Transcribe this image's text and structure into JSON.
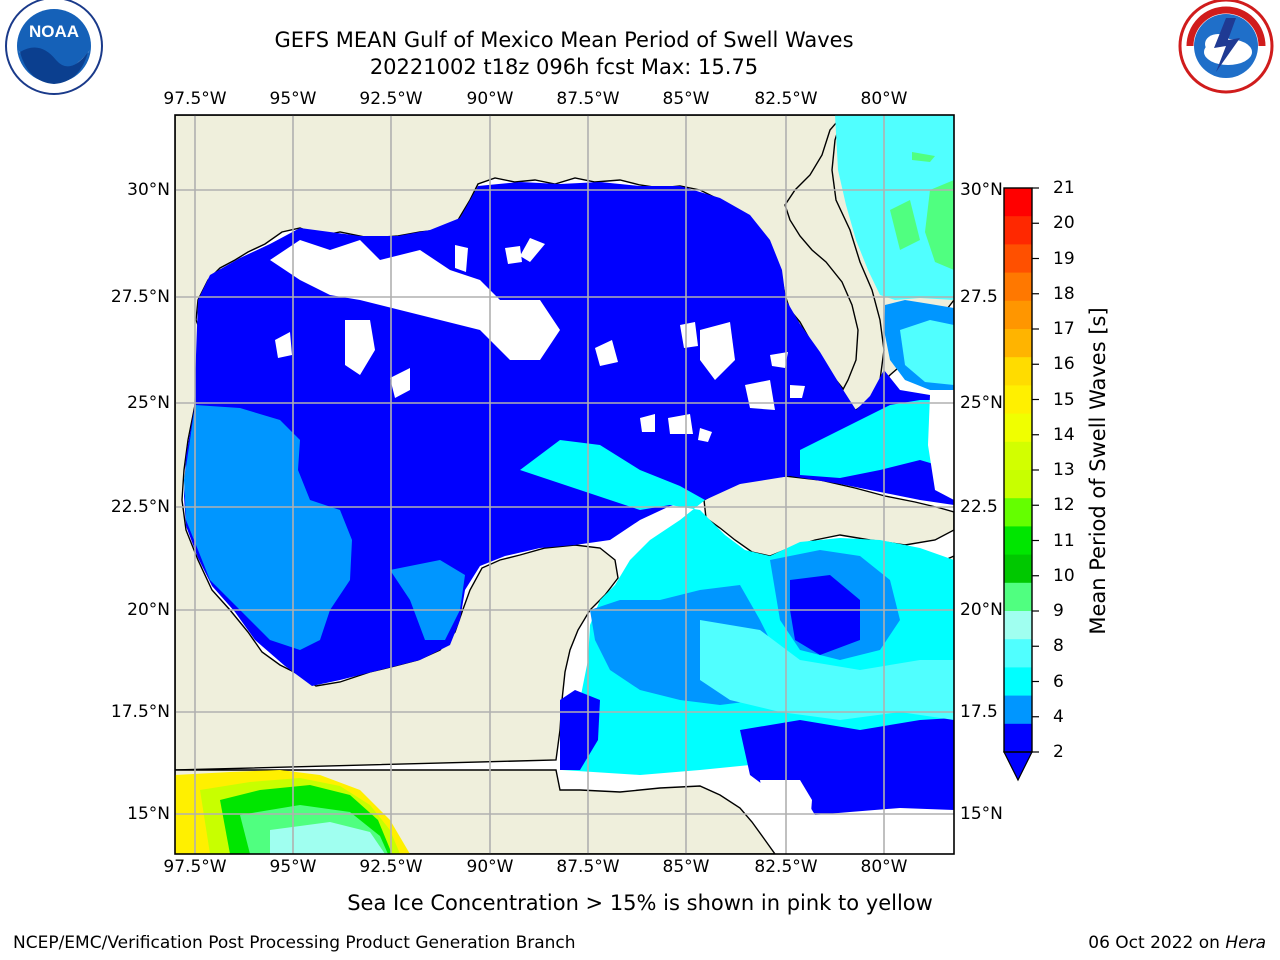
{
  "title": {
    "line1": "GEFS MEAN Gulf of Mexico Mean Period of Swell Waves",
    "line2": "20221002 t18z 096h fcst   Max: 15.75"
  },
  "map": {
    "longitude_ticks": [
      "97.5°W",
      "95°W",
      "92.5°W",
      "90°W",
      "87.5°W",
      "85°W",
      "82.5°W",
      "80°W"
    ],
    "latitude_ticks": [
      "30°N",
      "27.5°N",
      "25°N",
      "22.5°N",
      "20°N",
      "17.5°N",
      "15°N"
    ],
    "latitude_ticks_right": [
      "30°N",
      "27.5",
      "25°N",
      "22.5",
      "20°N",
      "17.5",
      "15°N"
    ],
    "extent": {
      "lon_min": -98,
      "lon_max": -78.2,
      "lat_min": 14,
      "lat_max": 31.8
    },
    "land_color": "#efefdc",
    "ocean_color": "#ffffff"
  },
  "colorbar": {
    "label": "Mean Period of Swell Waves [s]",
    "ticks": [
      "21",
      "20",
      "19",
      "18",
      "17",
      "16",
      "15",
      "14",
      "13",
      "12",
      "11",
      "10",
      "9",
      "8",
      "6",
      "4",
      "2"
    ],
    "colors": [
      "#ff0000",
      "#ff2800",
      "#ff5000",
      "#ff7800",
      "#ff9600",
      "#ffb400",
      "#ffdc00",
      "#fff000",
      "#f0ff00",
      "#d2ff00",
      "#c8ff00",
      "#64ff00",
      "#00e600",
      "#00c800",
      "#50ff80",
      "#a0fff0",
      "#50ffff",
      "#00ffff",
      "#0096ff",
      "#0000ff"
    ]
  },
  "subcaption": "Sea Ice Concentration > 15% is shown in pink to yellow",
  "footer": {
    "left": "NCEP/EMC/Verification Post Processing Product Generation Branch",
    "right_date": "06 Oct 2022 on ",
    "right_host": "Hera"
  },
  "logos": {
    "left": "NOAA",
    "right": "NATIONAL WEATHER SERVICE"
  }
}
